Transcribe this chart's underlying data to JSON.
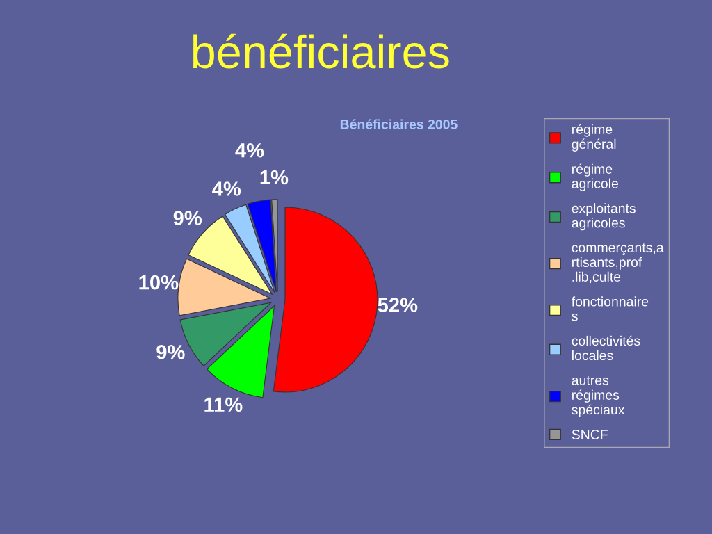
{
  "chart_data": {
    "type": "pie",
    "title": "bénéficiaires",
    "subtitle": "Bénéficiaires 2005",
    "categories": [
      "régime général",
      "régime agricole",
      "exploitants agricoles",
      "commerçants,artisants,prof.lib,culte",
      "fonctionnaires",
      "collectivités locales",
      "autres régimes spéciaux",
      "SNCF"
    ],
    "values": [
      52,
      11,
      9,
      10,
      9,
      4,
      4,
      1
    ],
    "value_labels": [
      "52%",
      "11%",
      "9%",
      "10%",
      "9%",
      "4%",
      "4%",
      "1%"
    ],
    "colors": [
      "#ff0000",
      "#00ff00",
      "#339966",
      "#ffcc99",
      "#ffff99",
      "#99ccff",
      "#0000ff",
      "#969696"
    ],
    "legend": "right"
  }
}
